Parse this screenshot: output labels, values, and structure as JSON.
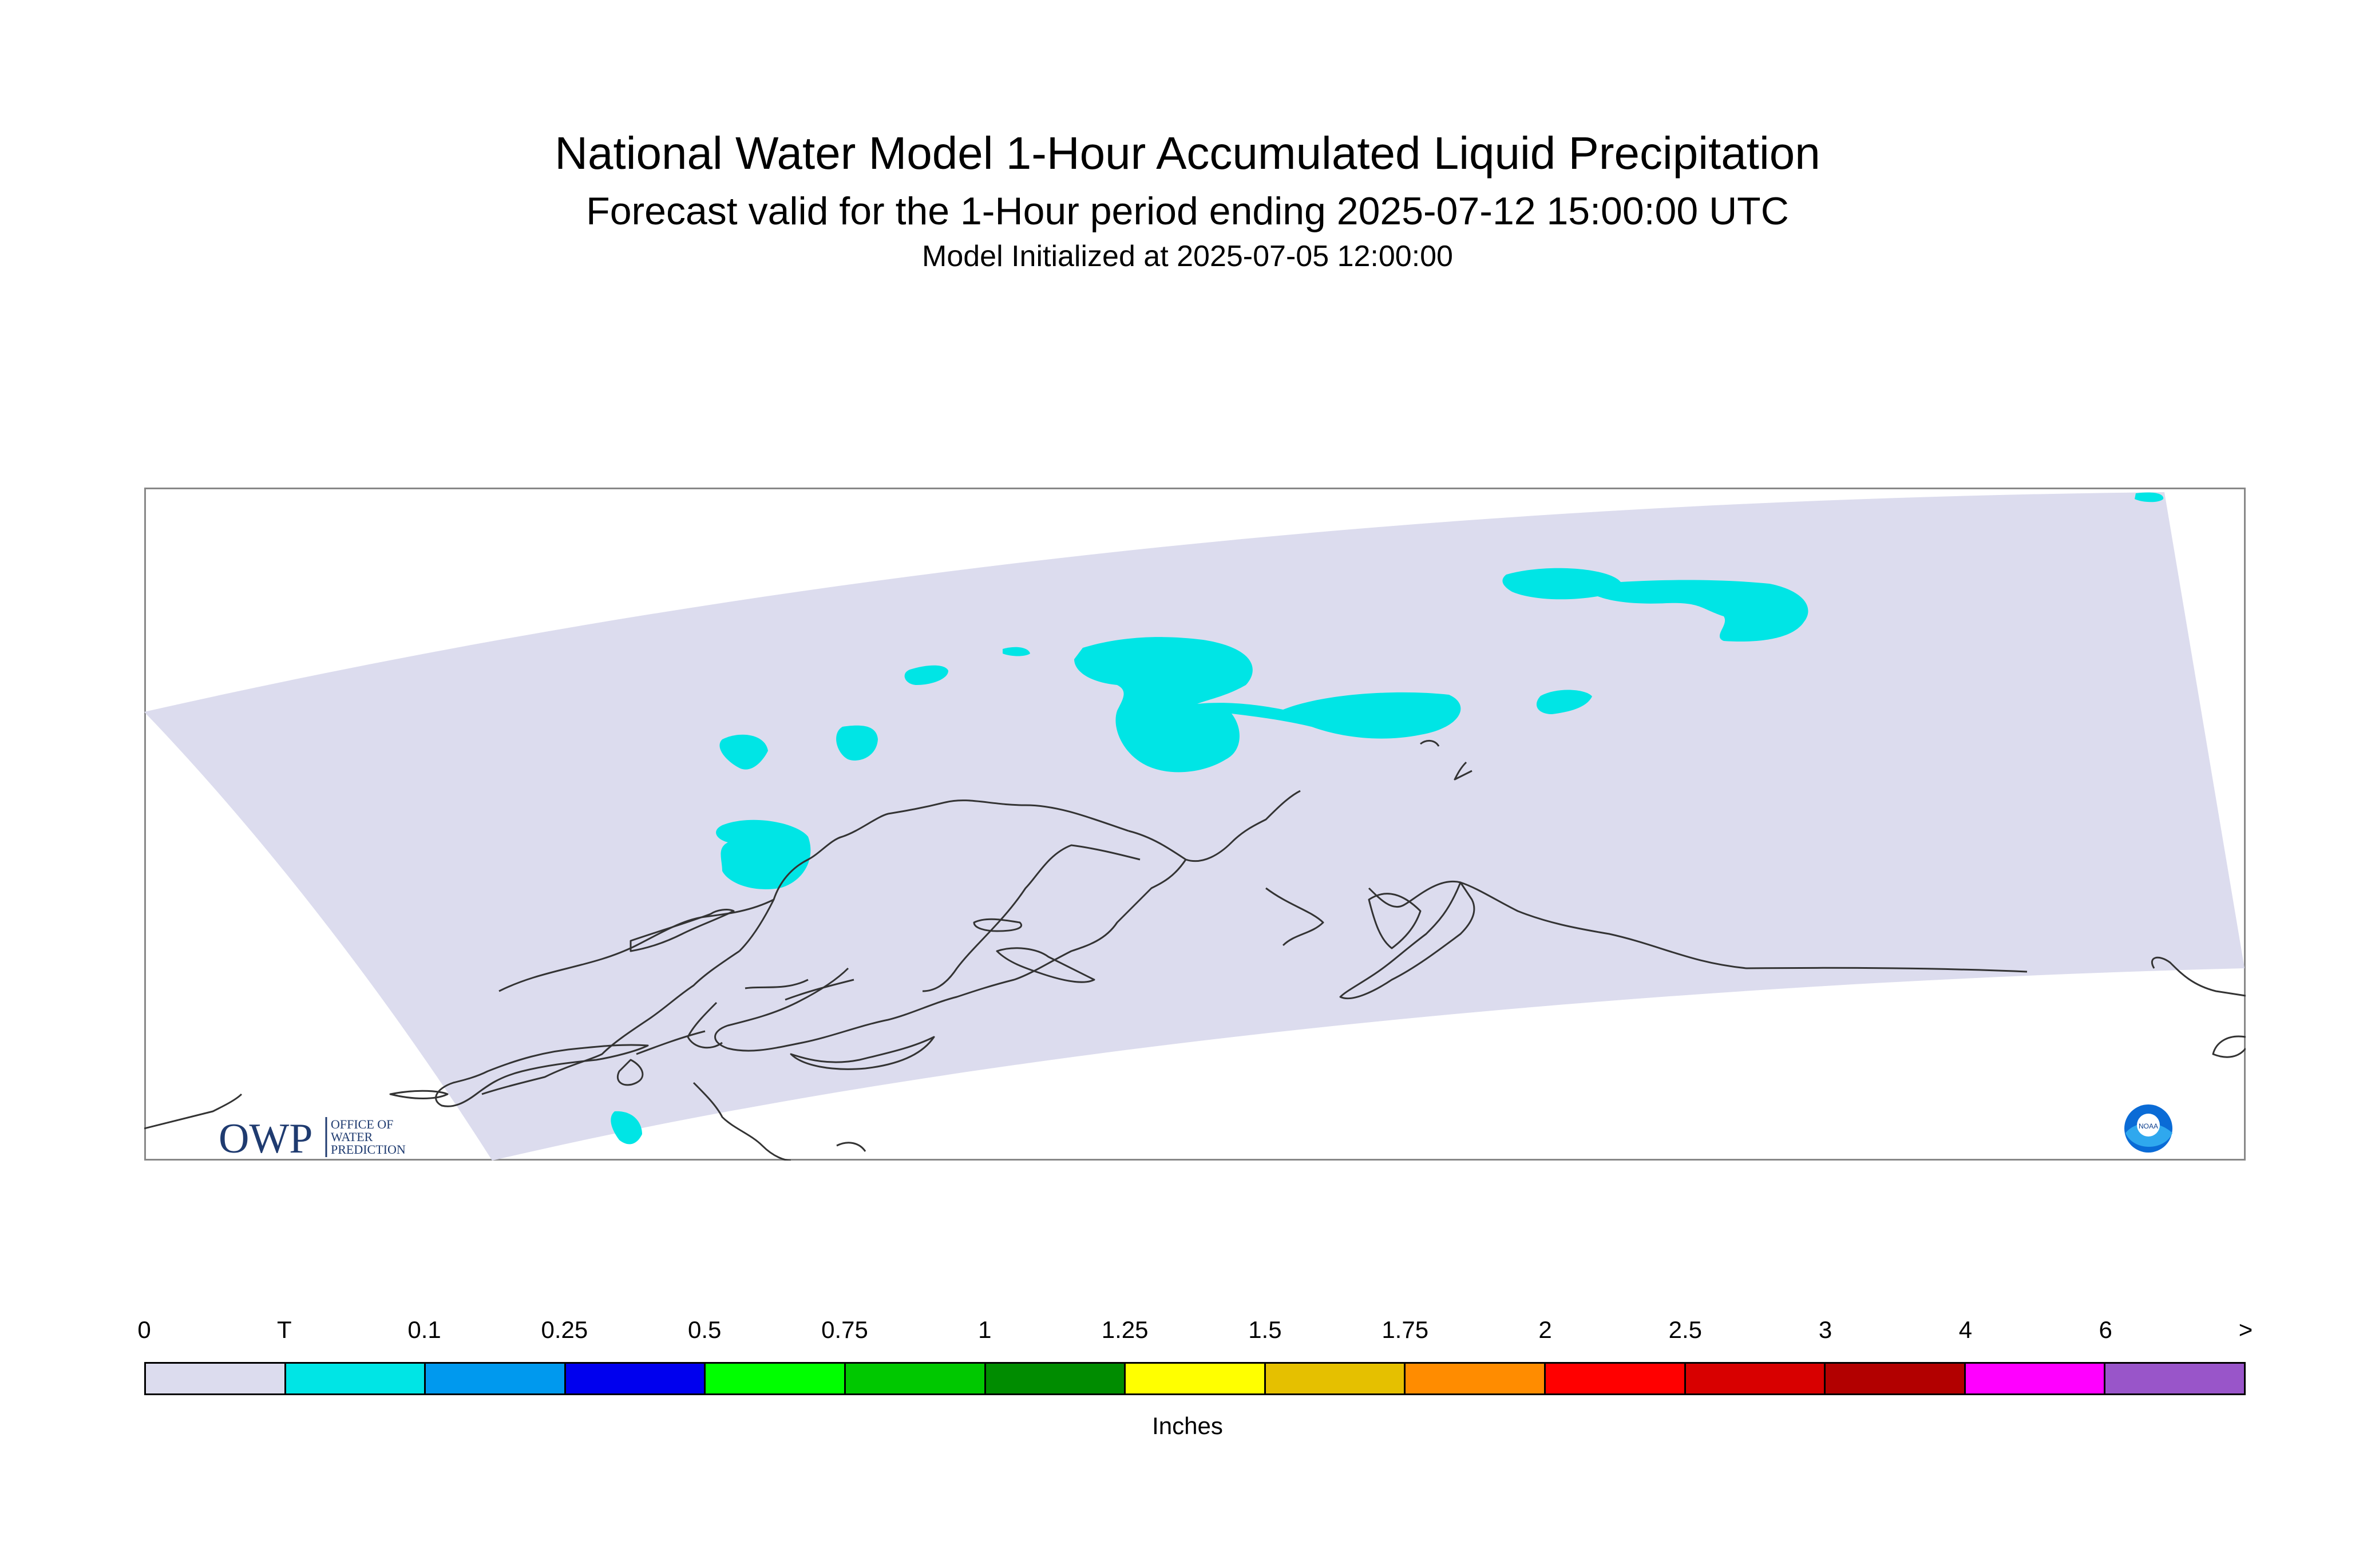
{
  "header": {
    "title": "National Water Model 1-Hour Accumulated Liquid Precipitation",
    "subtitle": "Forecast valid for the 1-Hour period ending 2025-07-12 15:00:00 UTC",
    "init": "Model Initialized at 2025-07-05 12:00:00"
  },
  "logos": {
    "owp_mark": "OWP",
    "owp_text": [
      "OFFICE OF",
      "WATER",
      "PREDICTION"
    ],
    "noaa_text": "NOAA"
  },
  "colors": {
    "domain_fill": "#dcdcee",
    "precip_trace": "#00e5e5",
    "coastline": "#333333",
    "frame": "#888888"
  },
  "legend": {
    "units": "Inches",
    "ticks": [
      "0",
      "T",
      "0.1",
      "0.25",
      "0.5",
      "0.75",
      "1",
      "1.25",
      "1.5",
      "1.75",
      "2",
      "2.5",
      "3",
      "4",
      "6",
      ">"
    ],
    "swatches": [
      "#dcdcee",
      "#00e5e5",
      "#0099ee",
      "#0000ee",
      "#00ff00",
      "#00c800",
      "#008c00",
      "#ffff00",
      "#e5c000",
      "#ff8c00",
      "#ff0000",
      "#d80000",
      "#b20000",
      "#ff00ff",
      "#9955c9"
    ]
  }
}
